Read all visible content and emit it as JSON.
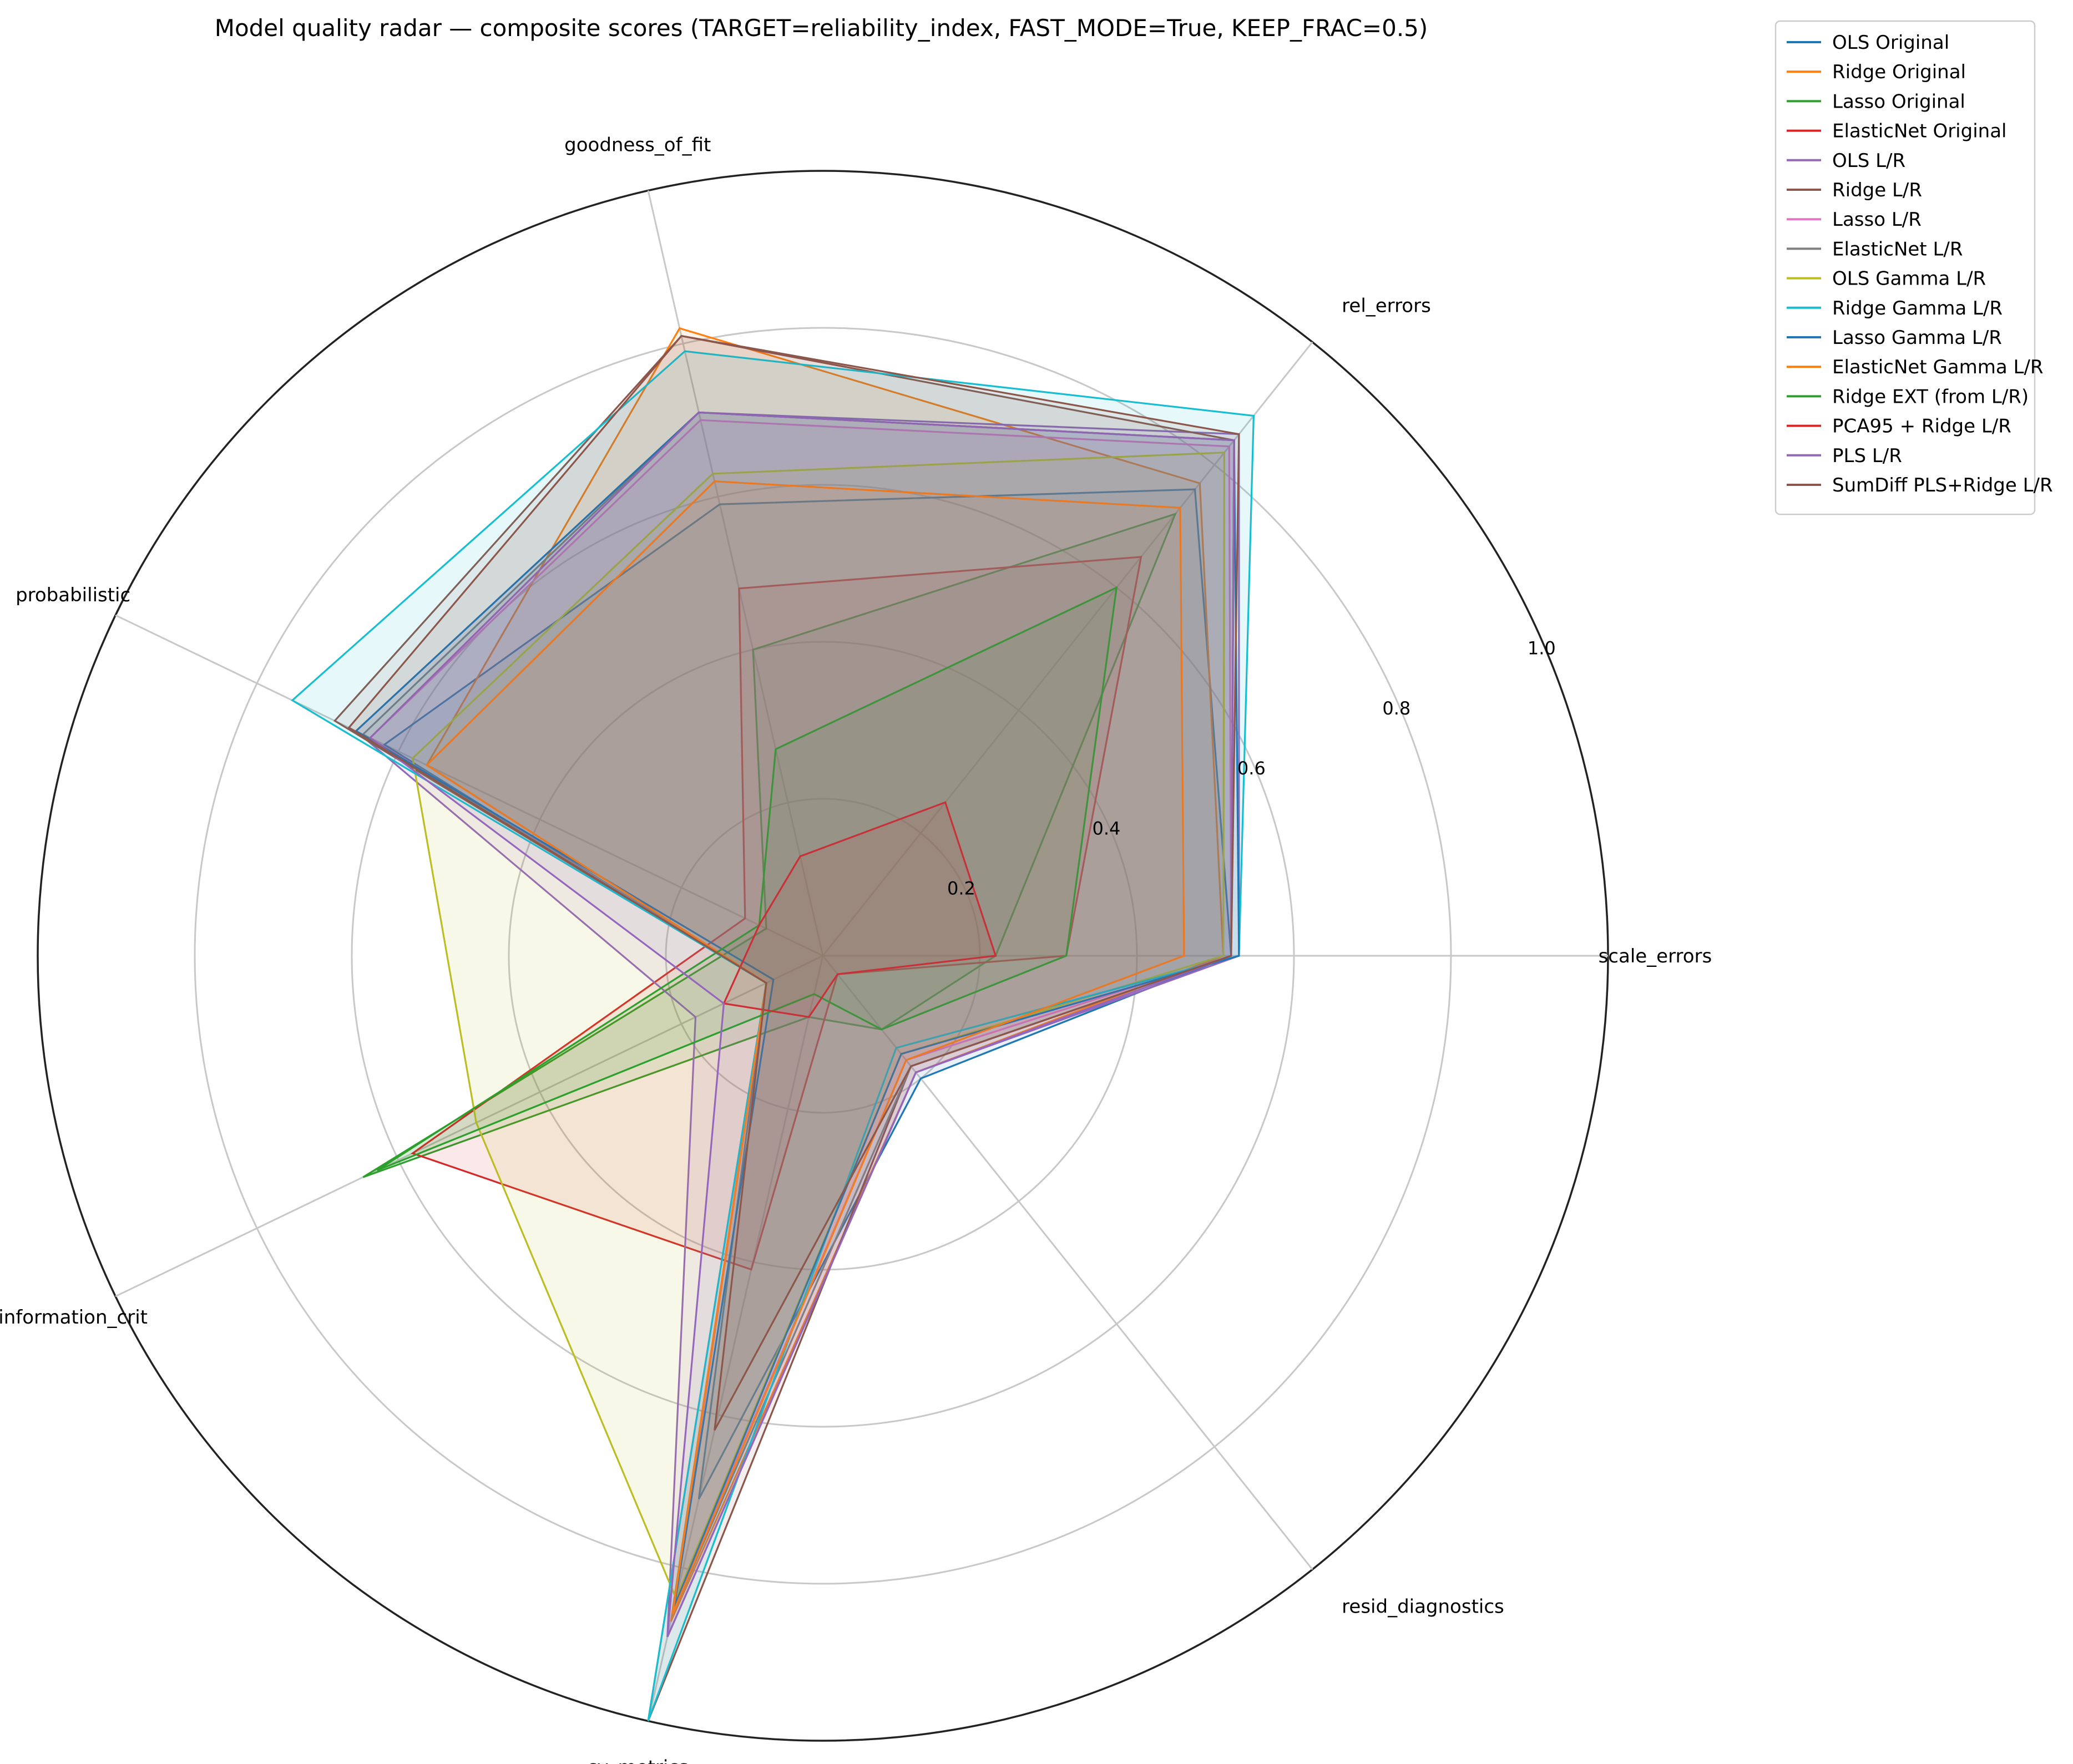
{
  "chart_data": {
    "type": "radar",
    "title": "Model quality radar — composite scores (TARGET=reliability_index, FAST_MODE=True, KEEP_FRAC=0.5)",
    "axes": [
      "scale_errors",
      "rel_errors",
      "goodness_of_fit",
      "probabilistic",
      "information_crit",
      "cv_metrics",
      "resid_diagnostics"
    ],
    "rlim": [
      0,
      1.0
    ],
    "rticks": [
      0.2,
      0.4,
      0.6,
      0.8,
      1.0
    ],
    "rtick_labels": [
      "0.2",
      "0.4",
      "0.6",
      "0.8",
      "1.0"
    ],
    "grid": true,
    "legend_position": "upper-right-outside",
    "series": [
      {
        "name": "OLS Original",
        "color": "#1f77b4",
        "values": [
          0.52,
          0.76,
          0.59,
          0.62,
          0.08,
          0.71,
          0.2
        ]
      },
      {
        "name": "Ridge Original",
        "color": "#ff7f0e",
        "values": [
          0.51,
          0.77,
          0.82,
          0.56,
          0.08,
          0.87,
          0.19
        ]
      },
      {
        "name": "Lasso Original",
        "color": "#2ca02c",
        "values": [
          0.22,
          0.72,
          0.4,
          0.08,
          0.65,
          0.08,
          0.12
        ]
      },
      {
        "name": "ElasticNet Original",
        "color": "#d62728",
        "values": [
          0.31,
          0.65,
          0.48,
          0.11,
          0.58,
          0.41,
          0.03
        ]
      },
      {
        "name": "OLS L/R",
        "color": "#9467bd",
        "values": [
          0.53,
          0.85,
          0.71,
          0.66,
          0.18,
          0.89,
          0.19
        ]
      },
      {
        "name": "Ridge L/R",
        "color": "#8c564b",
        "values": [
          0.52,
          0.84,
          0.81,
          0.69,
          0.08,
          1.0,
          0.18
        ]
      },
      {
        "name": "Lasso L/R",
        "color": "#e377c2",
        "values": [
          0.52,
          0.83,
          0.7,
          0.64,
          0.08,
          0.85,
          0.17
        ]
      },
      {
        "name": "ElasticNet L/R",
        "color": "#7f7f7f",
        "values": [
          0.52,
          0.84,
          0.71,
          0.65,
          0.08,
          0.86,
          0.18
        ]
      },
      {
        "name": "OLS Gamma L/R",
        "color": "#bcbd22",
        "values": [
          0.51,
          0.82,
          0.63,
          0.58,
          0.49,
          0.84,
          0.16
        ]
      },
      {
        "name": "Ridge Gamma L/R",
        "color": "#17becf",
        "values": [
          0.53,
          0.88,
          0.79,
          0.75,
          0.08,
          1.0,
          0.15
        ]
      },
      {
        "name": "Lasso Gamma L/R",
        "color": "#1f77b4",
        "values": [
          0.53,
          0.84,
          0.71,
          0.66,
          0.07,
          0.85,
          0.16
        ]
      },
      {
        "name": "ElasticNet Gamma L/R",
        "color": "#ff7f0e",
        "values": [
          0.46,
          0.73,
          0.62,
          0.56,
          0.08,
          0.86,
          0.17
        ]
      },
      {
        "name": "Ridge EXT (from L/R)",
        "color": "#2ca02c",
        "values": [
          0.31,
          0.6,
          0.27,
          0.09,
          0.63,
          0.05,
          0.12
        ]
      },
      {
        "name": "PCA95 + Ridge L/R",
        "color": "#d62728",
        "values": [
          0.22,
          0.25,
          0.13,
          0.09,
          0.14,
          0.08,
          0.03
        ]
      },
      {
        "name": "PLS L/R",
        "color": "#9467bd",
        "values": [
          0.52,
          0.84,
          0.71,
          0.64,
          0.14,
          0.89,
          0.19
        ]
      },
      {
        "name": "SumDiff PLS+Ridge L/R",
        "color": "#8c564b",
        "values": [
          0.52,
          0.85,
          0.81,
          0.67,
          0.08,
          0.62,
          0.18
        ]
      }
    ]
  }
}
